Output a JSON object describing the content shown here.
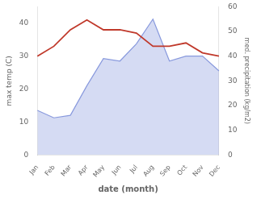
{
  "chart_data": {
    "type": "line",
    "categories": [
      "Jan",
      "Feb",
      "Mar",
      "Apr",
      "May",
      "Jun",
      "Jul",
      "Aug",
      "Sep",
      "Oct",
      "Nov",
      "Dec"
    ],
    "xlabel": "date (month)",
    "ylabel": "max temp (C)",
    "y2label": "med. precipitation (kg/m2)",
    "series": [
      {
        "type": "area",
        "axis": "y2",
        "color": "#8899dd",
        "values": [
          18,
          15,
          16,
          28,
          39,
          38,
          45,
          55,
          38,
          40,
          40,
          34
        ]
      },
      {
        "type": "line",
        "axis": "y",
        "color": "#c0392b",
        "values": [
          30,
          33,
          38,
          41,
          38,
          38,
          37,
          33,
          33,
          34,
          31,
          30
        ]
      }
    ],
    "ylim": [
      0,
      45
    ],
    "yticks": [
      0,
      10,
      20,
      30,
      40
    ],
    "y2lim": [
      0,
      60
    ],
    "y2ticks": [
      0,
      10,
      20,
      30,
      40,
      50,
      60
    ],
    "grid": false
  }
}
